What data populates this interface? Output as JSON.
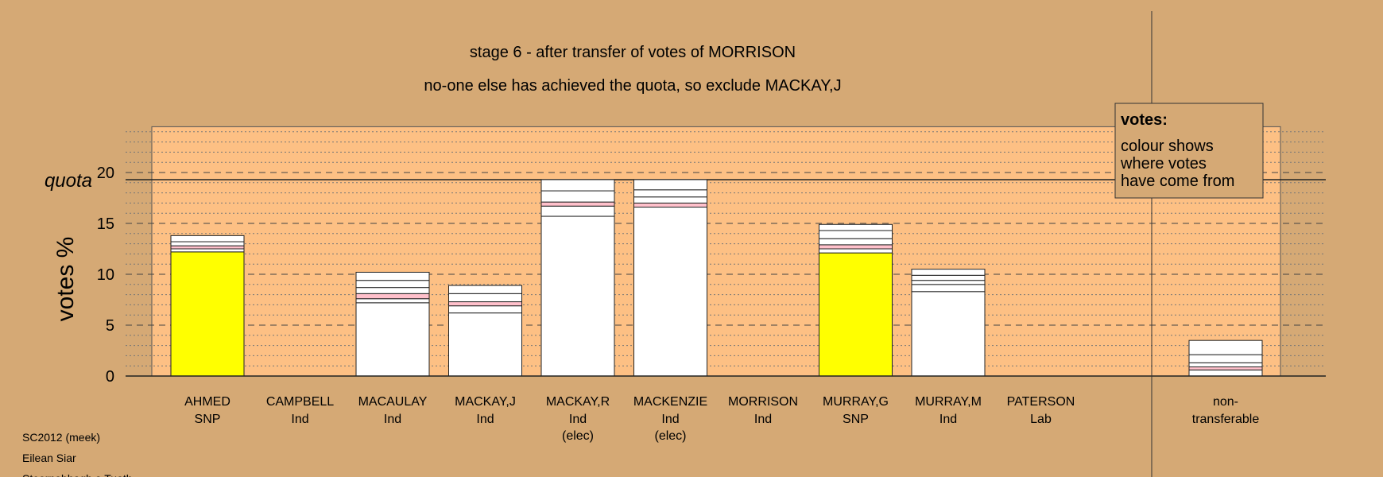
{
  "chart_data": {
    "type": "bar",
    "title": "stage 6 - after transfer of votes of MORRISON",
    "subtitle": "no-one else has achieved the quota, so exclude MACKAY,J",
    "ylabel": "votes %",
    "ylim": [
      0,
      24.5
    ],
    "yticks": [
      0,
      5,
      10,
      15,
      20
    ],
    "quota": {
      "label": "quota",
      "value": 19.3
    },
    "categories": [
      {
        "name": "AHMED",
        "party": "SNP",
        "note": ""
      },
      {
        "name": "CAMPBELL",
        "party": "Ind",
        "note": ""
      },
      {
        "name": "MACAULAY",
        "party": "Ind",
        "note": ""
      },
      {
        "name": "MACKAY,J",
        "party": "Ind",
        "note": ""
      },
      {
        "name": "MACKAY,R",
        "party": "Ind",
        "note": "(elec)"
      },
      {
        "name": "MACKENZIE",
        "party": "Ind",
        "note": "(elec)"
      },
      {
        "name": "MORRISON",
        "party": "Ind",
        "note": ""
      },
      {
        "name": "MURRAY,G",
        "party": "SNP",
        "note": ""
      },
      {
        "name": "MURRAY,M",
        "party": "Ind",
        "note": ""
      },
      {
        "name": "PATERSON",
        "party": "Lab",
        "note": ""
      }
    ],
    "bars": [
      {
        "segments": [
          {
            "value": 12.2,
            "color": "#ffff00"
          },
          {
            "value": 0.3,
            "color": "#ffffff"
          },
          {
            "value": 0.3,
            "color": "#ffc0cb"
          },
          {
            "value": 0.4,
            "color": "#ffffff"
          },
          {
            "value": 0.6,
            "color": "#ffffff"
          }
        ]
      },
      {
        "segments": []
      },
      {
        "segments": [
          {
            "value": 7.2,
            "color": "#ffffff"
          },
          {
            "value": 0.4,
            "color": "#ffffff"
          },
          {
            "value": 0.5,
            "color": "#ffc0cb"
          },
          {
            "value": 0.6,
            "color": "#ffffff"
          },
          {
            "value": 0.7,
            "color": "#ffffff"
          },
          {
            "value": 0.8,
            "color": "#ffffff"
          }
        ]
      },
      {
        "segments": [
          {
            "value": 6.2,
            "color": "#ffffff"
          },
          {
            "value": 0.7,
            "color": "#ffffff"
          },
          {
            "value": 0.4,
            "color": "#ffc0cb"
          },
          {
            "value": 0.8,
            "color": "#ffffff"
          },
          {
            "value": 0.8,
            "color": "#ffffff"
          }
        ]
      },
      {
        "segments": [
          {
            "value": 15.7,
            "color": "#ffffff"
          },
          {
            "value": 1.0,
            "color": "#ffffff"
          },
          {
            "value": 0.4,
            "color": "#ffc0cb"
          },
          {
            "value": 1.1,
            "color": "#ffffff"
          },
          {
            "value": 1.1,
            "color": "#ffffff"
          }
        ]
      },
      {
        "segments": [
          {
            "value": 16.6,
            "color": "#ffffff"
          },
          {
            "value": 0.4,
            "color": "#ffc0cb"
          },
          {
            "value": 0.6,
            "color": "#ffffff"
          },
          {
            "value": 0.7,
            "color": "#ffffff"
          },
          {
            "value": 1.0,
            "color": "#ffffff"
          }
        ]
      },
      {
        "segments": []
      },
      {
        "segments": [
          {
            "value": 12.1,
            "color": "#ffff00"
          },
          {
            "value": 0.4,
            "color": "#ffffff"
          },
          {
            "value": 0.4,
            "color": "#ffc0cb"
          },
          {
            "value": 0.6,
            "color": "#ffffff"
          },
          {
            "value": 0.8,
            "color": "#ffffff"
          },
          {
            "value": 0.6,
            "color": "#ffffff"
          }
        ]
      },
      {
        "segments": [
          {
            "value": 8.3,
            "color": "#ffffff"
          },
          {
            "value": 0.7,
            "color": "#ffffff"
          },
          {
            "value": 0.4,
            "color": "#ffffff"
          },
          {
            "value": 0.5,
            "color": "#ffffff"
          },
          {
            "value": 0.6,
            "color": "#ffffff"
          }
        ]
      },
      {
        "segments": []
      }
    ],
    "nontransferable": {
      "line1": "non-",
      "line2": "transferable",
      "segments": [
        {
          "value": 0.6,
          "color": "#ffffff"
        },
        {
          "value": 0.3,
          "color": "#ffc0cb"
        },
        {
          "value": 0.4,
          "color": "#ffffff"
        },
        {
          "value": 0.8,
          "color": "#ffffff"
        },
        {
          "value": 1.4,
          "color": "#ffffff"
        }
      ]
    },
    "legend": {
      "title": "votes:",
      "lines": [
        "colour shows",
        "where votes",
        "have come from"
      ],
      "placement": "top-right"
    },
    "grid": true
  },
  "footer": {
    "lines": [
      "SC2012 (meek)",
      "Eilean Siar",
      "Steornabhagh a Tuath"
    ]
  }
}
